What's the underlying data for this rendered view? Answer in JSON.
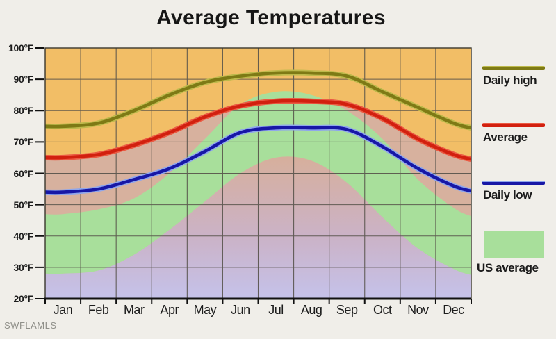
{
  "title": "Average Temperatures",
  "watermark": "SWFLAMLS",
  "chart_data": {
    "type": "line",
    "title": "Average Temperatures",
    "xlabel": "",
    "ylabel": "",
    "categories": [
      "Jan",
      "Feb",
      "Mar",
      "Apr",
      "May",
      "Jun",
      "Jul",
      "Aug",
      "Sep",
      "Oct",
      "Nov",
      "Dec"
    ],
    "series": [
      {
        "name": "Daily high",
        "color": "#7E7A15",
        "highlight": "#BDB94B",
        "values": [
          75,
          76,
          80,
          85,
          89,
          91,
          92,
          92,
          91,
          86,
          81,
          76
        ]
      },
      {
        "name": "Average",
        "color": "#D2200F",
        "highlight": "#EA5A43",
        "values": [
          65,
          66,
          69,
          73,
          78,
          81.5,
          83,
          83,
          82,
          77.5,
          71,
          66
        ]
      },
      {
        "name": "Daily low",
        "color": "#1717A6",
        "highlight": "#8FA6EC",
        "values": [
          54,
          55,
          58,
          61.5,
          67,
          73,
          74.5,
          74.5,
          74,
          68.5,
          61.5,
          56
        ]
      }
    ],
    "us_average_band": {
      "name": "US average",
      "color": "#A8DF9B",
      "high": [
        47,
        48.5,
        52,
        60,
        71,
        82,
        86,
        85,
        80,
        71,
        58,
        49
      ],
      "low": [
        28,
        29,
        34,
        42,
        51,
        60,
        65,
        64,
        57,
        46,
        36,
        29.5
      ]
    },
    "ylim": [
      20,
      100
    ],
    "yticks": [
      "100°F",
      "90°F",
      "80°F",
      "70°F",
      "60°F",
      "50°F",
      "40°F",
      "30°F",
      "20°F"
    ],
    "grid": true,
    "legend_position": "right",
    "plot_background": "#F2BE66",
    "below_average_fill": "#D7B19E",
    "below_band_gradient": [
      "#D7AF9B",
      "#CBB2C6",
      "#C5C2EA"
    ],
    "grid_color": "#56524A",
    "border_color": "#3B382F",
    "axis_color": "#111111"
  }
}
